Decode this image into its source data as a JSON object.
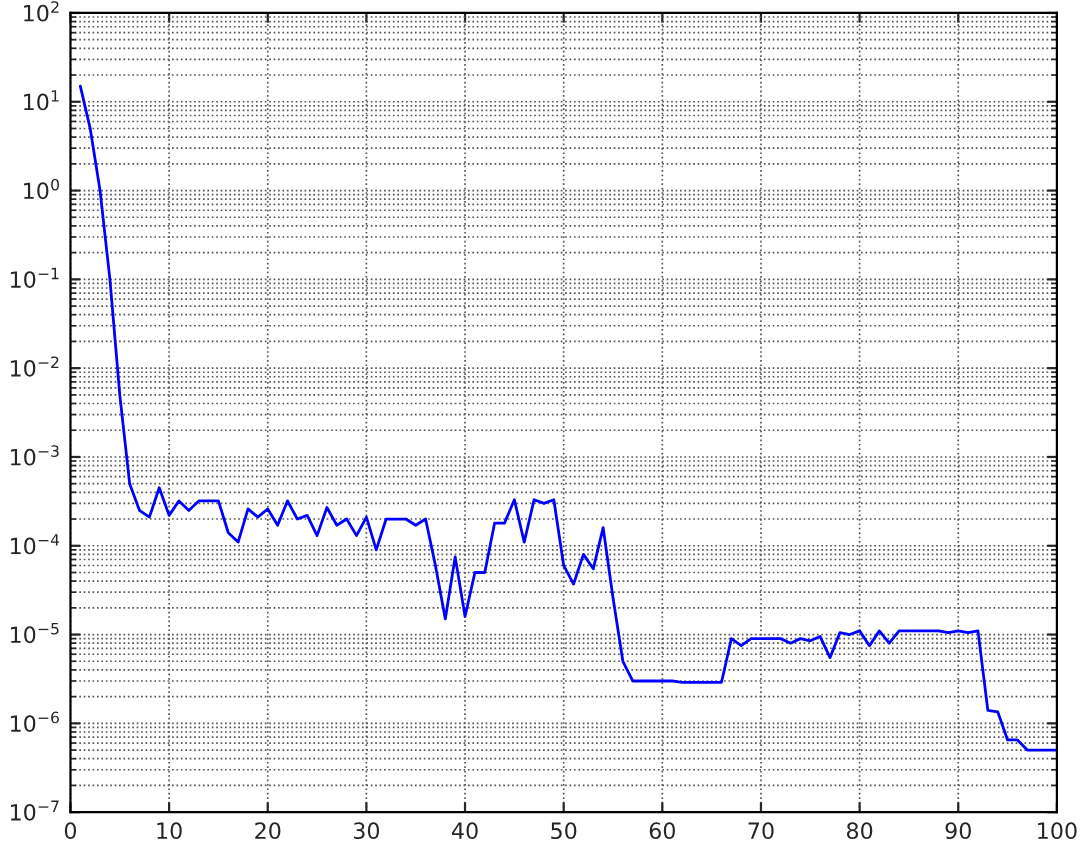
{
  "chart_data": {
    "type": "line",
    "log": "y",
    "grid": true,
    "marker": "none",
    "line_style": "solid",
    "x": [
      1,
      2,
      3,
      4,
      5,
      6,
      7,
      8,
      9,
      10,
      11,
      12,
      13,
      14,
      15,
      16,
      17,
      18,
      19,
      20,
      21,
      22,
      23,
      24,
      25,
      26,
      27,
      28,
      29,
      30,
      31,
      32,
      33,
      34,
      35,
      36,
      37,
      38,
      39,
      40,
      41,
      42,
      43,
      44,
      45,
      46,
      47,
      48,
      49,
      50,
      51,
      52,
      53,
      54,
      55,
      56,
      57,
      58,
      59,
      60,
      61,
      62,
      63,
      64,
      65,
      66,
      67,
      68,
      69,
      70,
      71,
      72,
      73,
      74,
      75,
      76,
      77,
      78,
      79,
      80,
      81,
      82,
      83,
      84,
      85,
      86,
      87,
      88,
      89,
      90,
      91,
      92,
      93,
      94,
      95,
      96,
      97,
      98,
      99,
      100
    ],
    "series": [
      {
        "color": "#0000ff",
        "values": [
          15,
          5,
          1,
          0.1,
          0.005,
          0.0005,
          0.00025,
          0.00021,
          0.00045,
          0.00022,
          0.00032,
          0.00025,
          0.00032,
          0.00032,
          0.00032,
          0.00014,
          0.00011,
          0.00026,
          0.00021,
          0.00026,
          0.00017,
          0.00032,
          0.0002,
          0.00022,
          0.00013,
          0.00027,
          0.00017,
          0.0002,
          0.00013,
          0.00021,
          9e-05,
          0.0002,
          0.0002,
          0.0002,
          0.00017,
          0.0002,
          6e-05,
          1.5e-05,
          7.5e-05,
          1.6e-05,
          5e-05,
          5e-05,
          0.00018,
          0.00018,
          0.00033,
          0.00011,
          0.00033,
          0.0003,
          0.00033,
          6e-05,
          3.7e-05,
          8e-05,
          5.5e-05,
          0.00016,
          2.6e-05,
          5e-06,
          3e-06,
          3e-06,
          3e-06,
          3e-06,
          3e-06,
          2.9e-06,
          2.9e-06,
          2.9e-06,
          2.9e-06,
          2.9e-06,
          9e-06,
          7.5e-06,
          9e-06,
          9e-06,
          9e-06,
          9e-06,
          8e-06,
          9e-06,
          8.5e-06,
          9.5e-06,
          5.5e-06,
          1.05e-05,
          1e-05,
          1.1e-05,
          7.5e-06,
          1.1e-05,
          8e-06,
          1.1e-05,
          1.1e-05,
          1.1e-05,
          1.1e-05,
          1.1e-05,
          1.05e-05,
          1.1e-05,
          1.05e-05,
          1.1e-05,
          1.4e-06,
          1.35e-06,
          6.5e-07,
          6.5e-07,
          5e-07,
          5e-07,
          5e-07,
          5e-07
        ]
      }
    ],
    "xlim": [
      0,
      100
    ],
    "xticks": [
      0,
      10,
      20,
      30,
      40,
      50,
      60,
      70,
      80,
      90,
      100
    ],
    "ylim": [
      1e-07,
      100
    ],
    "yticks": [
      {
        "value": 1e-07,
        "label": "10$^{−7}$"
      },
      {
        "value": 1e-06,
        "label": "10$^{−6}$"
      },
      {
        "value": 1e-05,
        "label": "10$^{−5}$"
      },
      {
        "value": 0.0001,
        "label": "10$^{−4}$"
      },
      {
        "value": 0.001,
        "label": "10$^{−3}$"
      },
      {
        "value": 0.01,
        "label": "10$^{−2}$"
      },
      {
        "value": 0.1,
        "label": "10$^{−1}$"
      },
      {
        "value": 1,
        "label": "10$^{0}$"
      },
      {
        "value": 10,
        "label": "10$^{1}$"
      },
      {
        "value": 100,
        "label": "10$^{2}$"
      }
    ]
  }
}
